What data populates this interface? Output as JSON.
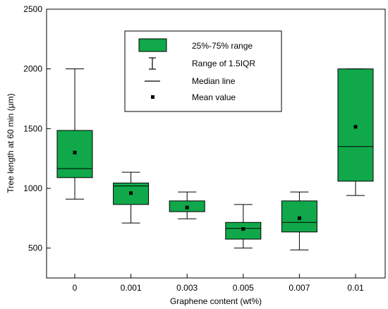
{
  "chart_data": {
    "type": "boxplot",
    "xlabel": "Graphene content (wt%)",
    "ylabel": "Tree length at 60 min (μm)",
    "ylim": [
      250,
      2500
    ],
    "yticks": [
      500,
      1000,
      1500,
      2000,
      2500
    ],
    "categories": [
      "0",
      "0.001",
      "0.003",
      "0.005",
      "0.007",
      "0.01"
    ],
    "boxes": [
      {
        "category": "0",
        "whisker_low": 910,
        "q1": 1090,
        "median": 1165,
        "q3": 1485,
        "whisker_high": 2000,
        "mean": 1300
      },
      {
        "category": "0.001",
        "whisker_low": 710,
        "q1": 865,
        "median": 1020,
        "q3": 1045,
        "whisker_high": 1135,
        "mean": 960
      },
      {
        "category": "0.003",
        "whisker_low": 745,
        "q1": 805,
        "median": 805,
        "q3": 895,
        "whisker_high": 970,
        "mean": 840
      },
      {
        "category": "0.005",
        "whisker_low": 500,
        "q1": 575,
        "median": 665,
        "q3": 715,
        "whisker_high": 865,
        "mean": 660
      },
      {
        "category": "0.007",
        "whisker_low": 485,
        "q1": 635,
        "median": 715,
        "q3": 895,
        "whisker_high": 970,
        "mean": 750
      },
      {
        "category": "0.01",
        "whisker_low": 940,
        "q1": 1060,
        "median": 1350,
        "q3": 2000,
        "whisker_high": 2000,
        "mean": 1515
      }
    ],
    "box_color": "#10a84a",
    "legend": {
      "placement": "top-center",
      "entries": [
        {
          "kind": "box",
          "label": "25%-75% range"
        },
        {
          "kind": "whisker",
          "label": "Range of 1.5IQR"
        },
        {
          "kind": "median",
          "label": "Median line"
        },
        {
          "kind": "mean",
          "label": "Mean value"
        }
      ]
    },
    "grid": false
  }
}
